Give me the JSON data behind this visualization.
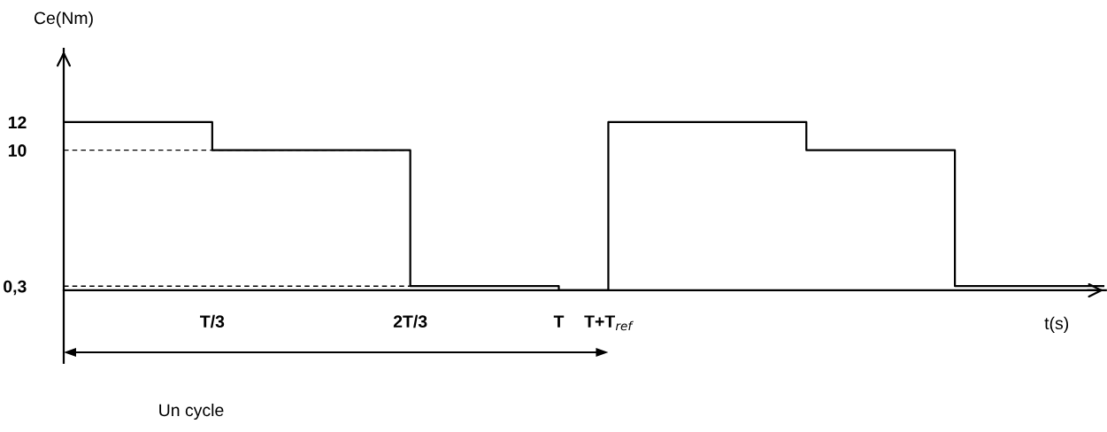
{
  "chart_data": {
    "type": "step",
    "xlabel": "t(s)",
    "ylabel": "Ce(Nm)",
    "categories": [
      null,
      null,
      null,
      "T/3",
      null,
      null,
      null,
      "2T/3",
      null,
      null,
      "T",
      "T+T$_{ref}$",
      null,
      null,
      null,
      null,
      null,
      null,
      null,
      null,
      null,
      null
    ],
    "series": [
      {
        "color": "#000000",
        "values": [
          12,
          12,
          12,
          10,
          10,
          10,
          10,
          0.3,
          0.3,
          0.3,
          0,
          12,
          12,
          12,
          12,
          10,
          10,
          10,
          0.3,
          0.3,
          0.3,
          0.3
        ]
      }
    ],
    "ylim": [
      -5.18,
      17.24
    ],
    "yticks": [
      {
        "value": 0.3,
        "label": "0,3"
      },
      10,
      12
    ],
    "ref_lines": [
      {
        "axis": "y",
        "value": 10,
        "line_style": "dashed",
        "color": "#000000"
      },
      {
        "axis": "y",
        "value": 0.3,
        "line_style": "dashed",
        "color": "#000000"
      }
    ],
    "annotations": [
      "Un cycle"
    ]
  }
}
